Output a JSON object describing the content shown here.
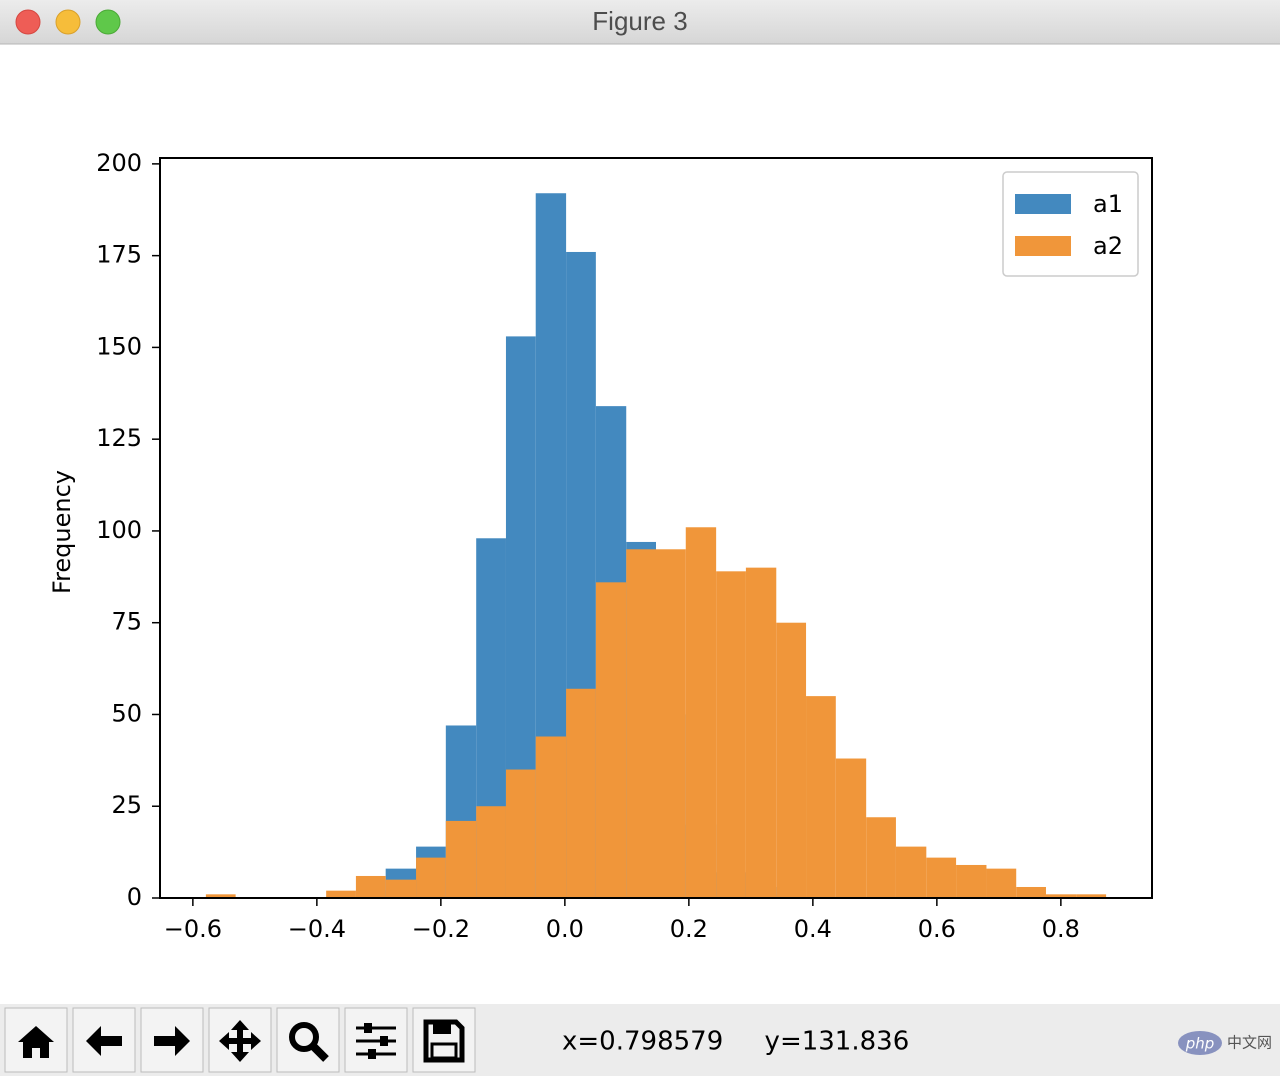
{
  "window": {
    "title": "Figure 3"
  },
  "chart_data": {
    "type": "histogram",
    "ylabel": "Frequency",
    "bins": [
      -0.579,
      -0.531,
      -0.482,
      -0.434,
      -0.385,
      -0.337,
      -0.289,
      -0.24,
      -0.192,
      -0.143,
      -0.095,
      -0.047,
      0.002,
      0.05,
      0.099,
      0.147,
      0.195,
      0.244,
      0.292,
      0.341,
      0.389,
      0.437,
      0.486,
      0.534,
      0.583,
      0.631,
      0.68,
      0.728,
      0.776,
      0.825,
      0.873
    ],
    "series": [
      {
        "name": "a1",
        "color": "#4389bf",
        "values": [
          0,
          0,
          0,
          0,
          0,
          2,
          8,
          14,
          47,
          98,
          153,
          192,
          176,
          134,
          97,
          50,
          20,
          7,
          3,
          1,
          0,
          0,
          0,
          0,
          0,
          0,
          0,
          0,
          0,
          0
        ]
      },
      {
        "name": "a2",
        "color": "#f0963a",
        "values": [
          1,
          0,
          0,
          0,
          2,
          6,
          5,
          11,
          21,
          25,
          35,
          44,
          57,
          86,
          95,
          95,
          101,
          89,
          90,
          75,
          55,
          38,
          22,
          14,
          11,
          9,
          8,
          3,
          1,
          1
        ]
      }
    ],
    "xlim": [
      -0.653,
      0.947
    ],
    "ylim": [
      0,
      201.6
    ],
    "xticks": [
      {
        "value": -0.6,
        "label": "−0.6"
      },
      {
        "value": -0.4,
        "label": "−0.4"
      },
      {
        "value": -0.2,
        "label": "−0.2"
      },
      {
        "value": 0,
        "label": "0.0"
      },
      0.2,
      0.4,
      0.6,
      0.8
    ],
    "yticks": [
      0,
      25,
      50,
      75,
      100,
      125,
      150,
      175,
      200
    ],
    "legend": "upper right"
  },
  "status": "x=0.798579     y=131.836",
  "watermark": {
    "logo": "php",
    "text": "中文网"
  }
}
